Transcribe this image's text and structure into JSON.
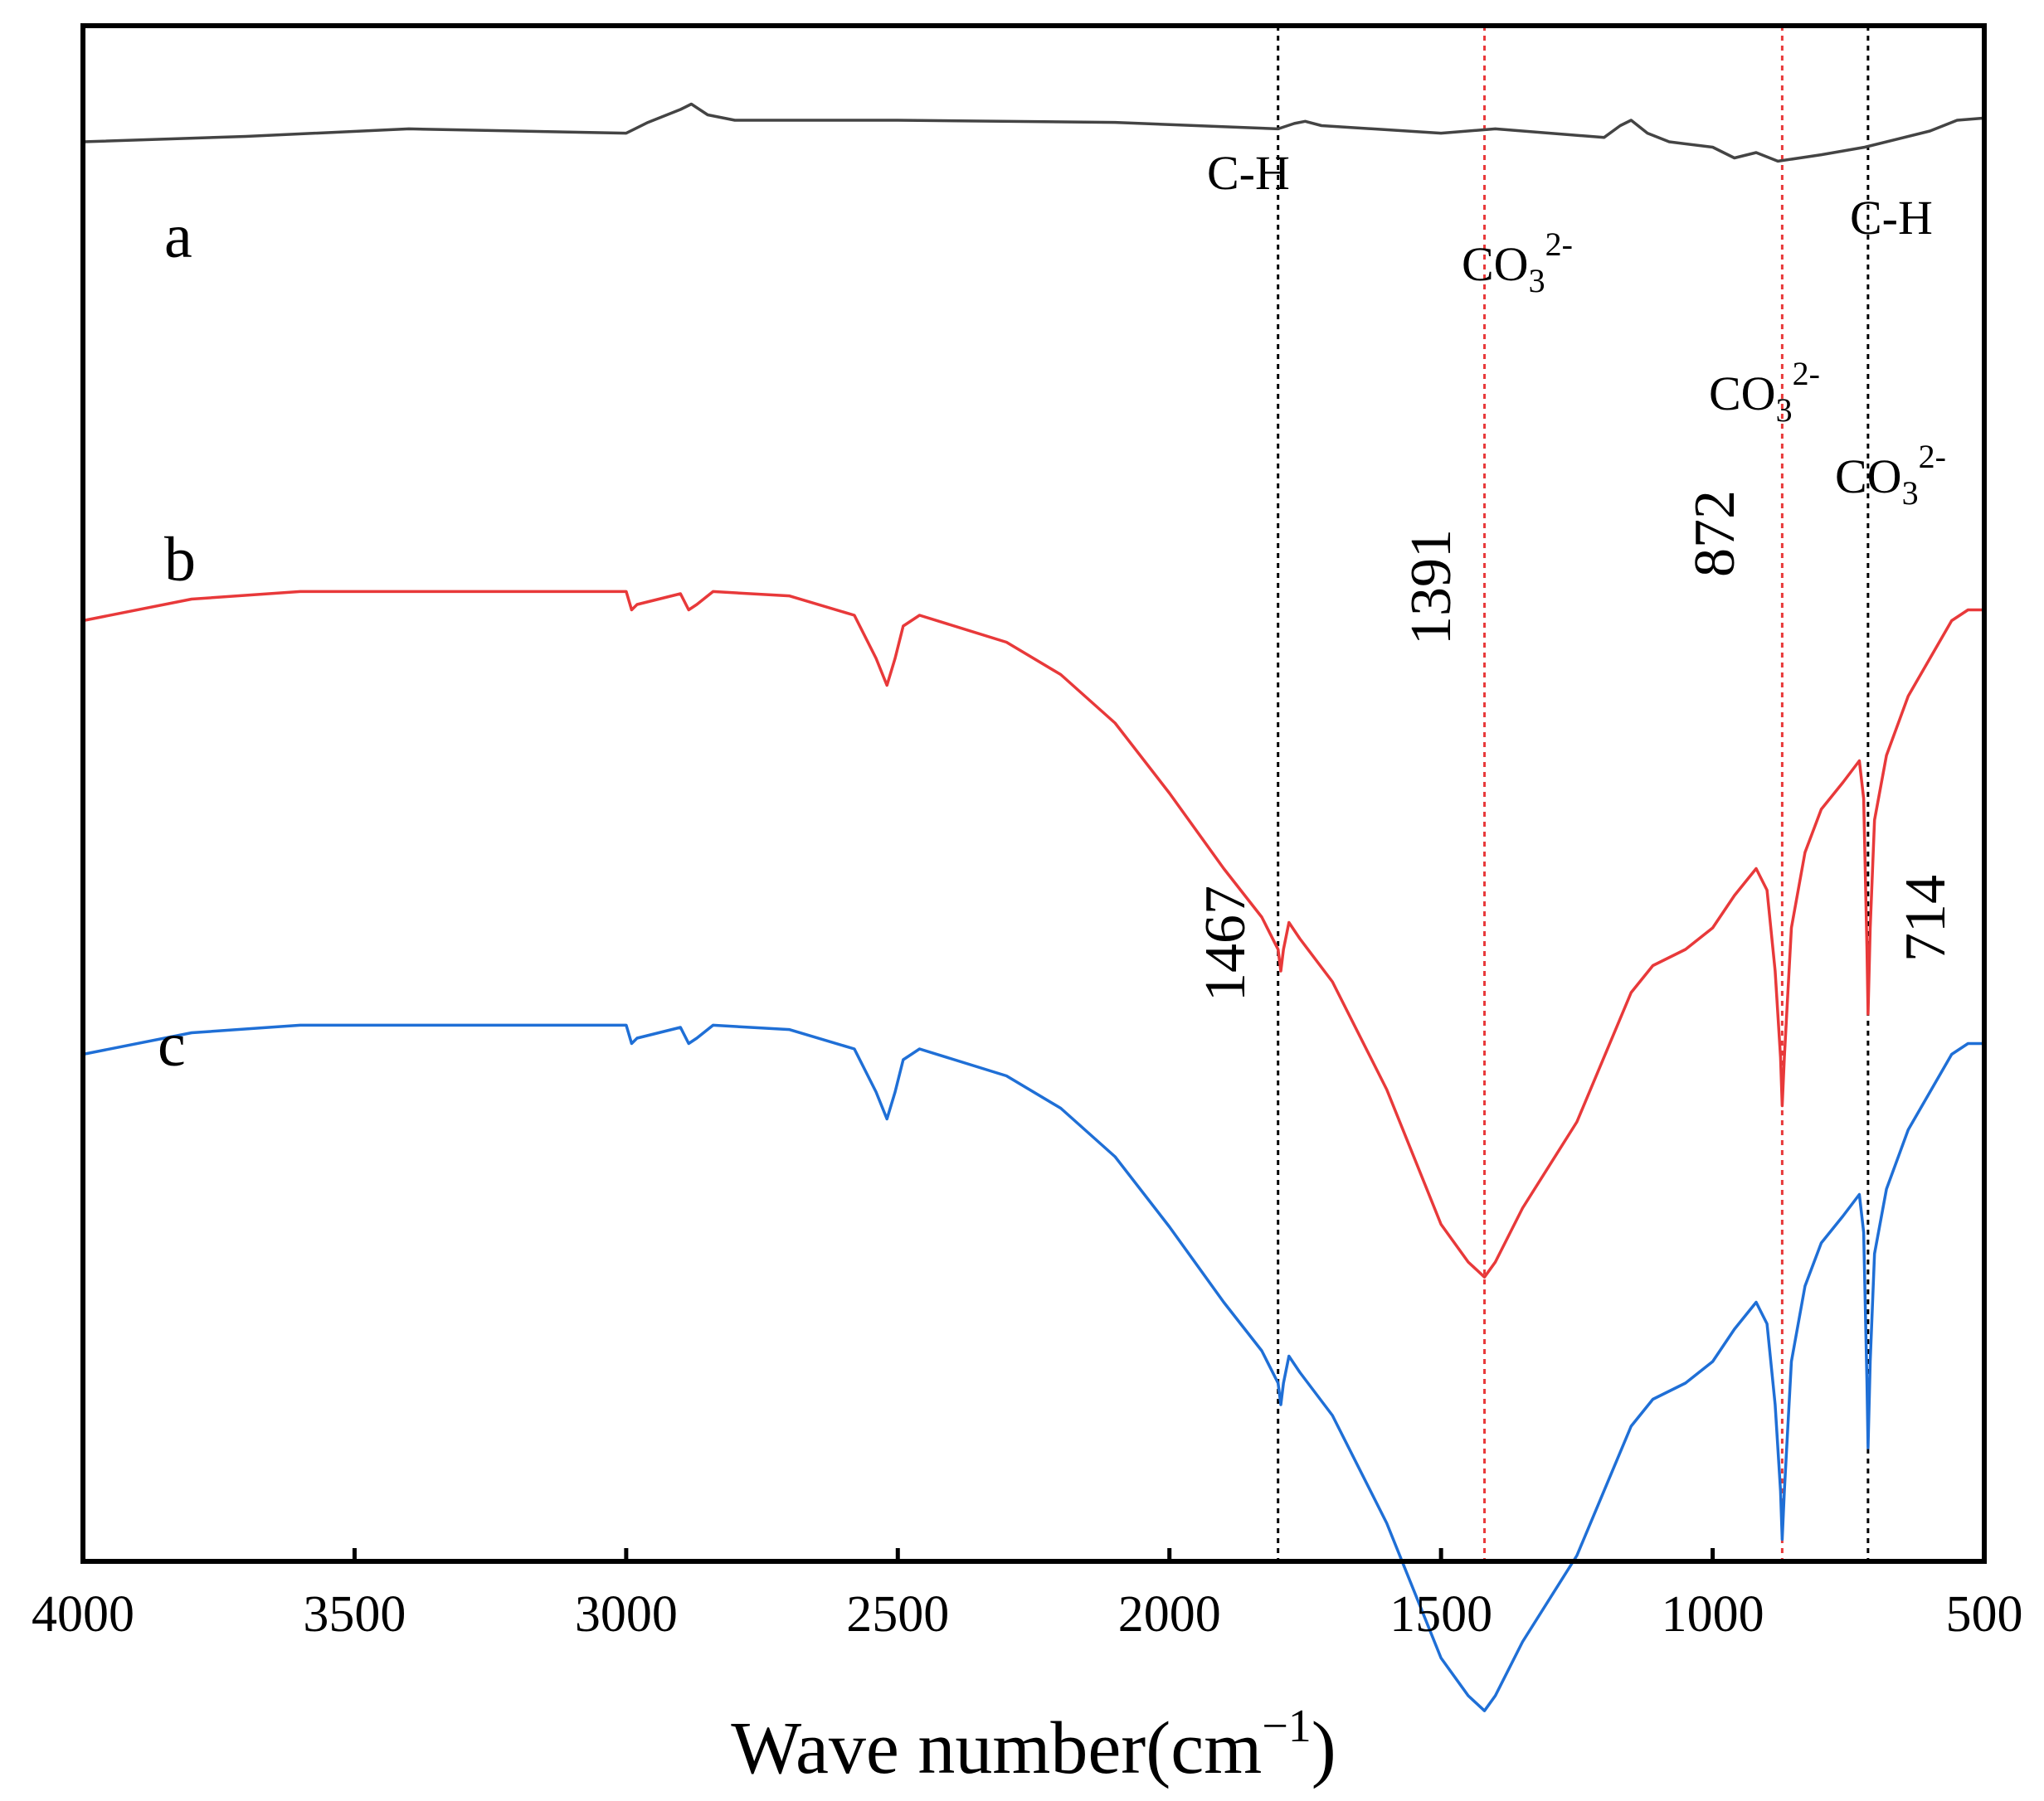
{
  "chart_data": {
    "type": "line",
    "title": "",
    "xlabel": "Wave number(cm",
    "xlabel_superscript": "−1",
    "xlabel_close": ")",
    "ylabel": "",
    "xlim": [
      4000,
      500
    ],
    "x_ticks": [
      4000,
      3500,
      3000,
      2500,
      2000,
      1500,
      1000,
      500
    ],
    "y_ticks_shown": false,
    "grid": false,
    "series": [
      {
        "name": "a",
        "color": "#444444",
        "offset": 0,
        "points": [
          [
            4000,
            0.97
          ],
          [
            3700,
            0.965
          ],
          [
            3400,
            0.958
          ],
          [
            3000,
            0.962
          ],
          [
            2960,
            0.952
          ],
          [
            2900,
            0.94
          ],
          [
            2880,
            0.935
          ],
          [
            2850,
            0.945
          ],
          [
            2800,
            0.95
          ],
          [
            2500,
            0.95
          ],
          [
            2100,
            0.952
          ],
          [
            1800,
            0.958
          ],
          [
            1770,
            0.953
          ],
          [
            1750,
            0.951
          ],
          [
            1720,
            0.955
          ],
          [
            1500,
            0.962
          ],
          [
            1400,
            0.958
          ],
          [
            1200,
            0.966
          ],
          [
            1170,
            0.955
          ],
          [
            1150,
            0.95
          ],
          [
            1120,
            0.962
          ],
          [
            1080,
            0.97
          ],
          [
            1000,
            0.975
          ],
          [
            960,
            0.985
          ],
          [
            920,
            0.98
          ],
          [
            880,
            0.988
          ],
          [
            800,
            0.982
          ],
          [
            720,
            0.975
          ],
          [
            600,
            0.96
          ],
          [
            550,
            0.95
          ],
          [
            500,
            0.948
          ]
        ]
      },
      {
        "name": "b",
        "color": "#e8393a",
        "offset": 1,
        "points": [
          [
            4000,
            0.995
          ],
          [
            3800,
            0.975
          ],
          [
            3600,
            0.968
          ],
          [
            3200,
            0.968
          ],
          [
            3000,
            0.968
          ],
          [
            2990,
            0.985
          ],
          [
            2980,
            0.98
          ],
          [
            2900,
            0.97
          ],
          [
            2885,
            0.985
          ],
          [
            2870,
            0.98
          ],
          [
            2840,
            0.968
          ],
          [
            2700,
            0.972
          ],
          [
            2580,
            0.99
          ],
          [
            2540,
            1.03
          ],
          [
            2520,
            1.055
          ],
          [
            2505,
            1.03
          ],
          [
            2490,
            1.0
          ],
          [
            2460,
            0.99
          ],
          [
            2300,
            1.015
          ],
          [
            2200,
            1.045
          ],
          [
            2100,
            1.09
          ],
          [
            2000,
            1.155
          ],
          [
            1900,
            1.225
          ],
          [
            1830,
            1.27
          ],
          [
            1800,
            1.3
          ],
          [
            1795,
            1.32
          ],
          [
            1790,
            1.3
          ],
          [
            1780,
            1.275
          ],
          [
            1760,
            1.29
          ],
          [
            1700,
            1.33
          ],
          [
            1600,
            1.43
          ],
          [
            1500,
            1.555
          ],
          [
            1450,
            1.59
          ],
          [
            1420,
            1.604
          ],
          [
            1400,
            1.59
          ],
          [
            1350,
            1.54
          ],
          [
            1250,
            1.46
          ],
          [
            1150,
            1.34
          ],
          [
            1110,
            1.315
          ],
          [
            1050,
            1.3
          ],
          [
            1000,
            1.28
          ],
          [
            960,
            1.25
          ],
          [
            920,
            1.225
          ],
          [
            900,
            1.245
          ],
          [
            885,
            1.32
          ],
          [
            875,
            1.4
          ],
          [
            872,
            1.445
          ],
          [
            868,
            1.4
          ],
          [
            855,
            1.28
          ],
          [
            830,
            1.21
          ],
          [
            800,
            1.17
          ],
          [
            760,
            1.145
          ],
          [
            730,
            1.125
          ],
          [
            722,
            1.16
          ],
          [
            716,
            1.3
          ],
          [
            714,
            1.36
          ],
          [
            710,
            1.28
          ],
          [
            702,
            1.18
          ],
          [
            680,
            1.12
          ],
          [
            640,
            1.065
          ],
          [
            600,
            1.03
          ],
          [
            560,
            0.995
          ],
          [
            530,
            0.985
          ],
          [
            500,
            0.985
          ]
        ]
      },
      {
        "name": "c",
        "color": "#1f6fd6",
        "offset": 2,
        "points": [
          [
            4000,
            0.995
          ],
          [
            3800,
            0.975
          ],
          [
            3600,
            0.968
          ],
          [
            3200,
            0.968
          ],
          [
            3000,
            0.968
          ],
          [
            2990,
            0.985
          ],
          [
            2980,
            0.98
          ],
          [
            2900,
            0.97
          ],
          [
            2885,
            0.985
          ],
          [
            2870,
            0.98
          ],
          [
            2840,
            0.968
          ],
          [
            2700,
            0.972
          ],
          [
            2580,
            0.99
          ],
          [
            2540,
            1.03
          ],
          [
            2520,
            1.055
          ],
          [
            2505,
            1.03
          ],
          [
            2490,
            1.0
          ],
          [
            2460,
            0.99
          ],
          [
            2300,
            1.015
          ],
          [
            2200,
            1.045
          ],
          [
            2100,
            1.09
          ],
          [
            2000,
            1.155
          ],
          [
            1900,
            1.225
          ],
          [
            1830,
            1.27
          ],
          [
            1800,
            1.3
          ],
          [
            1795,
            1.32
          ],
          [
            1790,
            1.3
          ],
          [
            1780,
            1.275
          ],
          [
            1760,
            1.29
          ],
          [
            1700,
            1.33
          ],
          [
            1600,
            1.43
          ],
          [
            1500,
            1.555
          ],
          [
            1450,
            1.59
          ],
          [
            1420,
            1.604
          ],
          [
            1400,
            1.59
          ],
          [
            1350,
            1.54
          ],
          [
            1250,
            1.46
          ],
          [
            1150,
            1.34
          ],
          [
            1110,
            1.315
          ],
          [
            1050,
            1.3
          ],
          [
            1000,
            1.28
          ],
          [
            960,
            1.25
          ],
          [
            920,
            1.225
          ],
          [
            900,
            1.245
          ],
          [
            885,
            1.32
          ],
          [
            875,
            1.4
          ],
          [
            872,
            1.445
          ],
          [
            868,
            1.4
          ],
          [
            855,
            1.28
          ],
          [
            830,
            1.21
          ],
          [
            800,
            1.17
          ],
          [
            760,
            1.145
          ],
          [
            730,
            1.125
          ],
          [
            722,
            1.16
          ],
          [
            716,
            1.3
          ],
          [
            714,
            1.36
          ],
          [
            710,
            1.28
          ],
          [
            702,
            1.18
          ],
          [
            680,
            1.12
          ],
          [
            640,
            1.065
          ],
          [
            600,
            1.03
          ],
          [
            560,
            0.995
          ],
          [
            530,
            0.985
          ],
          [
            500,
            0.985
          ]
        ]
      }
    ],
    "reference_lines": [
      {
        "x": 1800,
        "color": "#000000"
      },
      {
        "x": 1420,
        "color": "#e8393a"
      },
      {
        "x": 872,
        "color": "#e8393a"
      },
      {
        "x": 714,
        "color": "#000000"
      }
    ],
    "annotations": [
      {
        "text": "C-H",
        "x": 1830
      },
      {
        "text": "C-H",
        "x": 680
      },
      {
        "text": "CO",
        "sub": "3",
        "sup": "2-",
        "x": 1420
      },
      {
        "text": "CO",
        "sub": "3",
        "sup": "2-",
        "x": 890
      },
      {
        "text": "CO",
        "sub": "3",
        "sup": "2-",
        "x": 670
      }
    ],
    "peak_labels": [
      "1467",
      "1391",
      "872",
      "714"
    ]
  }
}
